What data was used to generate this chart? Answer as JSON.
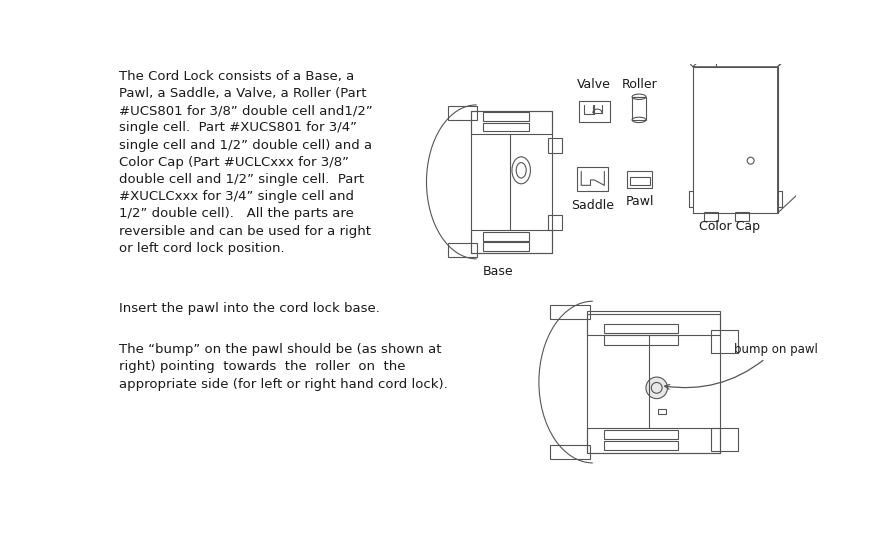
{
  "bg_color": "#ffffff",
  "line_color": "#555555",
  "text_color": "#1a1a1a",
  "fig_width": 8.87,
  "fig_height": 5.37,
  "left_text_p1": "The Cord Lock consists of a Base, a\nPawl, a Saddle, a Valve, a Roller (Part\n#UCS801 for 3/8” double cell and1/2”\nsingle cell.  Part #XUCS801 for 3/4”\nsingle cell and 1/2” double cell) and a\nColor Cap (Part #UCLCxxx for 3/8”\ndouble cell and 1/2” single cell.  Part\n#XUCLCxxx for 3/4” single cell and\n1/2” double cell).   All the parts are\nreversible and can be used for a right\nor left cord lock position.",
  "left_text_p2": "Insert the pawl into the cord lock base.",
  "left_text_p3": "The “bump” on the pawl should be (as shown at\nright) pointing  towards  the  roller  on  the\nappropriate side (for left or right hand cord lock).",
  "label_base": "Base",
  "label_valve": "Valve",
  "label_roller": "Roller",
  "label_saddle": "Saddle",
  "label_pawl": "Pawl",
  "label_color_cap": "Color Cap",
  "label_bump": "bump on pawl",
  "font_size_body": 9.5,
  "font_size_label": 9.0
}
